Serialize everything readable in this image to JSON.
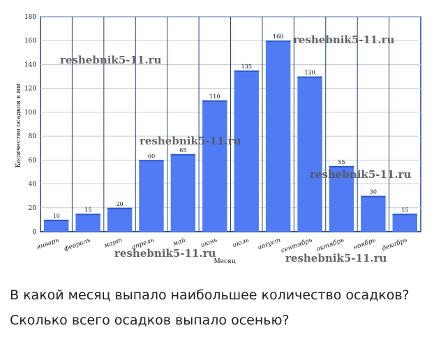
{
  "chart_data": {
    "type": "bar",
    "categories": [
      "январь",
      "февраль",
      "март",
      "апрель",
      "май",
      "июнь",
      "июль",
      "август",
      "сентябрь",
      "октябрь",
      "ноябрь",
      "декабрь"
    ],
    "values": [
      10,
      15,
      20,
      60,
      65,
      110,
      135,
      160,
      130,
      55,
      30,
      15
    ],
    "xlabel": "Месяц",
    "ylabel": "Количество осадков в мм",
    "ylim": [
      0,
      180
    ],
    "yticks": [
      0,
      20,
      40,
      60,
      80,
      100,
      120,
      140,
      160,
      180
    ],
    "grid": true,
    "bar_color": "#4f7cf5",
    "bar_top_color": "#2f57c9"
  },
  "watermarks": [
    "reshebnik5-11.ru",
    "reshebnik5-11.ru",
    "reshebnik5-11.ru",
    "reshebnik5-11.ru",
    "reshebnik5-11.ru",
    "reshebnik5-11.ru"
  ],
  "questions": {
    "q1": "В какой месяц выпало наибольшее количество осадков?",
    "q2": "Сколько всего осадков выпало осенью?"
  }
}
